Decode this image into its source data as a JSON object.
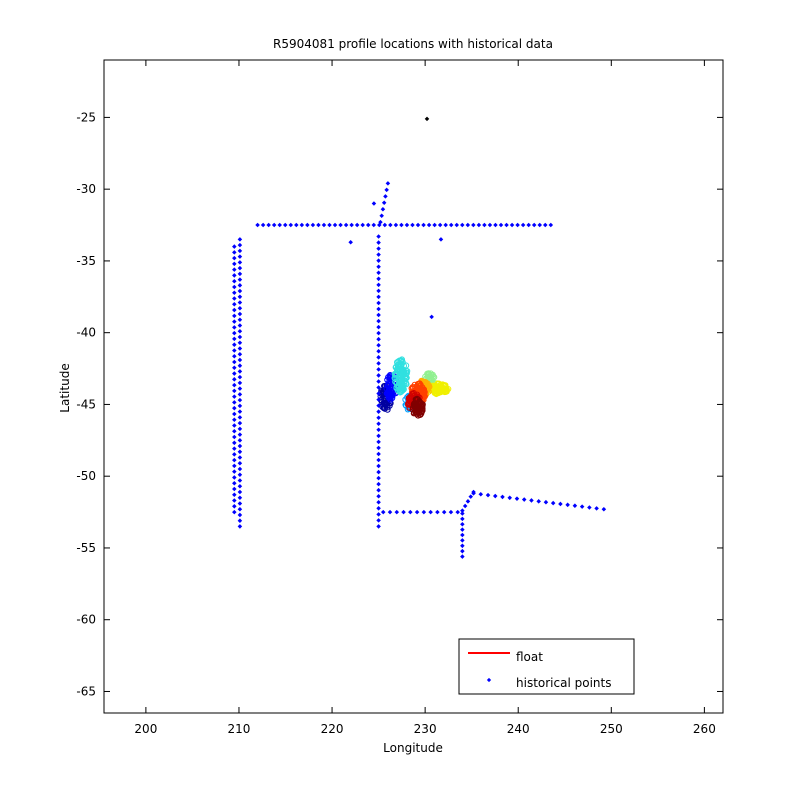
{
  "chart_data": {
    "type": "scatter",
    "title": "R5904081 profile locations with historical data",
    "xlabel": "Longitude",
    "ylabel": "Latitude",
    "xlim": [
      195.5,
      262
    ],
    "ylim": [
      -66.5,
      -21
    ],
    "xticks": [
      200,
      210,
      220,
      230,
      240,
      250,
      260
    ],
    "yticks": [
      -25,
      -30,
      -35,
      -40,
      -45,
      -50,
      -55,
      -60,
      -65
    ],
    "legend": {
      "placement": "bottom-right",
      "entries": [
        {
          "label": "float",
          "color": "#ff0000",
          "marker": "line"
        },
        {
          "label": "historical points",
          "color": "#0000ff",
          "marker": "dot"
        }
      ]
    },
    "colors": {
      "historical": "#0000ff",
      "special_point": "#000000",
      "float_colormap": [
        "#0000a0",
        "#0000ff",
        "#00a0ff",
        "#30e0e0",
        "#90f090",
        "#f0f000",
        "#ffb000",
        "#ff4000",
        "#d00000",
        "#800000"
      ]
    },
    "series": [
      {
        "name": "historical points",
        "color": "#0000ff",
        "segments": [
          {
            "from": [
              212,
              -32.5
            ],
            "to": [
              243.5,
              -32.5
            ],
            "step": 0.6
          },
          {
            "from": [
              209.5,
              -34
            ],
            "to": [
              209.5,
              -52.5
            ],
            "step": 0.4
          },
          {
            "from": [
              210.1,
              -33.5
            ],
            "to": [
              210.1,
              -53.5
            ],
            "step": 0.4
          },
          {
            "from": [
              225,
              -33.3
            ],
            "to": [
              225,
              -53.5
            ],
            "step": 0.42
          },
          {
            "from": [
              226,
              -29.6
            ],
            "to": [
              225.2,
              -32.3
            ],
            "step": 0.45
          },
          {
            "from": [
              225.5,
              -52.5
            ],
            "to": [
              233.5,
              -52.5
            ],
            "step": 0.7
          },
          {
            "from": [
              234,
              -52.6
            ],
            "to": [
              234,
              -55.6
            ],
            "step": 0.4
          },
          {
            "from": [
              234,
              -52.4
            ],
            "to": [
              235.2,
              -51.1
            ],
            "step": 0.5
          },
          {
            "from": [
              235.2,
              -51.2
            ],
            "to": [
              249.2,
              -52.3
            ],
            "step": 0.8
          }
        ],
        "points": [
          [
            224.5,
            -31
          ],
          [
            222,
            -33.7
          ],
          [
            231.7,
            -33.5
          ],
          [
            230.7,
            -38.9
          ]
        ]
      },
      {
        "name": "float",
        "clusters": [
          {
            "center": [
              225.8,
              -44.5
            ],
            "spread": [
              0.6,
              0.9
            ],
            "count": 60,
            "colorIndex": 0
          },
          {
            "center": [
              226.4,
              -43.8
            ],
            "spread": [
              0.6,
              0.9
            ],
            "count": 60,
            "colorIndex": 1
          },
          {
            "center": [
              227.4,
              -43.0
            ],
            "spread": [
              0.7,
              1.2
            ],
            "count": 100,
            "colorIndex": 3
          },
          {
            "center": [
              228.3,
              -44.8
            ],
            "spread": [
              0.5,
              0.6
            ],
            "count": 30,
            "colorIndex": 2
          },
          {
            "center": [
              230.5,
              -43.3
            ],
            "spread": [
              0.6,
              0.5
            ],
            "count": 40,
            "colorIndex": 4
          },
          {
            "center": [
              231.5,
              -43.9
            ],
            "spread": [
              1.0,
              0.4
            ],
            "count": 70,
            "colorIndex": 5
          },
          {
            "center": [
              229.8,
              -43.9
            ],
            "spread": [
              0.7,
              0.6
            ],
            "count": 70,
            "colorIndex": 6
          },
          {
            "center": [
              229.2,
              -44.3
            ],
            "spread": [
              0.8,
              0.8
            ],
            "count": 100,
            "colorIndex": 7
          },
          {
            "center": [
              228.8,
              -44.8
            ],
            "spread": [
              0.7,
              0.6
            ],
            "count": 70,
            "colorIndex": 8
          },
          {
            "center": [
              229.2,
              -45.2
            ],
            "spread": [
              0.6,
              0.6
            ],
            "count": 70,
            "colorIndex": 9
          }
        ]
      },
      {
        "name": "",
        "color": "#000000",
        "points": [
          [
            230.2,
            -25.1
          ]
        ]
      }
    ]
  }
}
